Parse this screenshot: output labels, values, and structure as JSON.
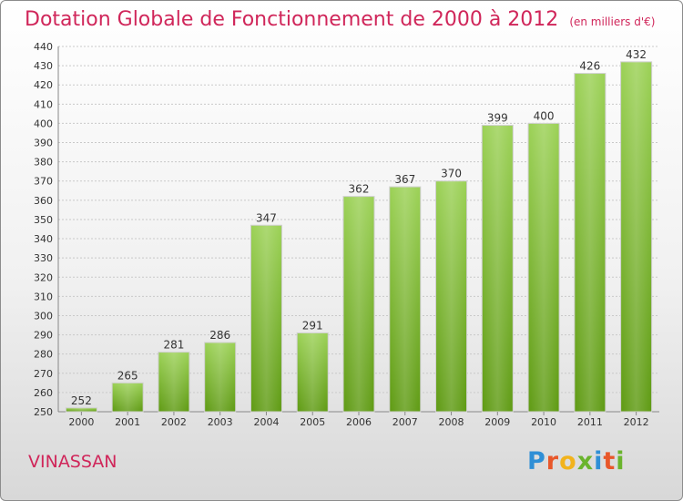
{
  "header": {
    "title": "Dotation Globale de Fonctionnement de 2000 à 2012",
    "subtitle": "(en milliers d'€)"
  },
  "footer": {
    "town": "VINASSAN",
    "logo_text": "Proxiti",
    "logo_colors": [
      "#2f8fd6",
      "#e8572a",
      "#f2b31c",
      "#6ab42d",
      "#2f8fd6",
      "#e8572a",
      "#6ab42d"
    ]
  },
  "chart_data": {
    "type": "bar",
    "categories": [
      "2000",
      "2001",
      "2002",
      "2003",
      "2004",
      "2005",
      "2006",
      "2007",
      "2008",
      "2009",
      "2010",
      "2011",
      "2012"
    ],
    "values": [
      252,
      265,
      281,
      286,
      347,
      291,
      362,
      367,
      370,
      399,
      400,
      426,
      432
    ],
    "title": "Dotation Globale de Fonctionnement de 2000 à 2012",
    "subtitle": "(en milliers d'€)",
    "xlabel": "",
    "ylabel": "",
    "ylim": [
      250,
      440
    ],
    "yticks": [
      250,
      260,
      270,
      280,
      290,
      300,
      310,
      320,
      330,
      340,
      350,
      360,
      370,
      380,
      390,
      400,
      410,
      420,
      430,
      440
    ],
    "grid": true,
    "bar_color_top": "#9bd155",
    "bar_color_bottom": "#5e9a12"
  }
}
